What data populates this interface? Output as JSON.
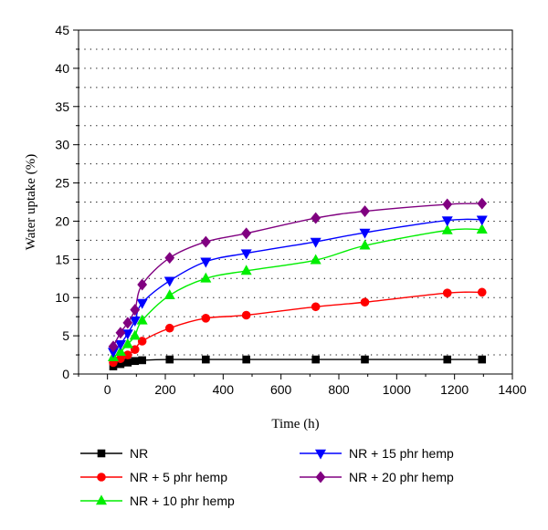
{
  "chart_data": {
    "type": "line",
    "title": "",
    "xlabel": "Time (h)",
    "ylabel": "Water uptake (%)",
    "xlim": [
      -100,
      1400
    ],
    "ylim": [
      0,
      45
    ],
    "x_ticks": [
      "0",
      "200",
      "400",
      "600",
      "800",
      "1000",
      "1200",
      "1400"
    ],
    "y_ticks": [
      "0",
      "5",
      "10",
      "15",
      "20",
      "25",
      "30",
      "35",
      "40",
      "45"
    ],
    "grid": "horizontal dotted",
    "legend_position": "bottom",
    "series": [
      {
        "name": "NR",
        "color": "#000000",
        "marker": "square",
        "x": [
          20,
          45,
          70,
          95,
          120,
          215,
          340,
          480,
          720,
          890,
          1175,
          1295
        ],
        "y": [
          1.0,
          1.3,
          1.5,
          1.7,
          1.8,
          1.9,
          1.9,
          1.9,
          1.9,
          1.9,
          1.9,
          1.9
        ]
      },
      {
        "name": "NR + 5 phr hemp",
        "color": "#ff0000",
        "marker": "circle",
        "x": [
          20,
          45,
          70,
          95,
          120,
          215,
          340,
          480,
          720,
          890,
          1175,
          1295
        ],
        "y": [
          1.5,
          2.0,
          2.5,
          3.2,
          4.3,
          6.0,
          7.3,
          7.7,
          8.8,
          9.4,
          10.6,
          10.7
        ]
      },
      {
        "name": "NR + 10 phr hemp",
        "color": "#00ee00",
        "marker": "triangle-up",
        "x": [
          20,
          45,
          70,
          95,
          120,
          215,
          340,
          480,
          720,
          890,
          1175,
          1295
        ],
        "y": [
          2.2,
          2.9,
          3.9,
          5.0,
          7.0,
          10.3,
          12.5,
          13.5,
          14.9,
          16.8,
          18.8,
          18.9
        ]
      },
      {
        "name": "NR + 15 phr hemp",
        "color": "#0000ff",
        "marker": "triangle-down",
        "x": [
          20,
          45,
          70,
          95,
          120,
          215,
          340,
          480,
          720,
          890,
          1175,
          1295
        ],
        "y": [
          2.9,
          3.9,
          5.3,
          7.0,
          9.3,
          12.2,
          14.7,
          15.8,
          17.3,
          18.5,
          20.1,
          20.2
        ]
      },
      {
        "name": "NR + 20 phr hemp",
        "color": "#800080",
        "marker": "diamond",
        "x": [
          20,
          45,
          70,
          95,
          120,
          215,
          340,
          480,
          720,
          890,
          1175,
          1295
        ],
        "y": [
          3.6,
          5.4,
          6.7,
          8.4,
          11.7,
          15.2,
          17.3,
          18.4,
          20.4,
          21.3,
          22.2,
          22.3
        ]
      }
    ]
  }
}
